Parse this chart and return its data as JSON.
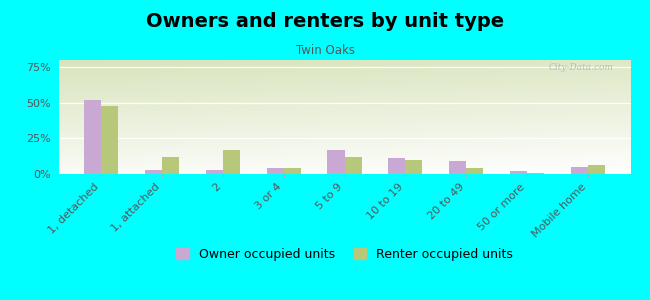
{
  "title": "Owners and renters by unit type",
  "subtitle": "Twin Oaks",
  "categories": [
    "1, detached",
    "1, attached",
    "2",
    "3 or 4",
    "5 to 9",
    "10 to 19",
    "20 to 49",
    "50 or more",
    "Mobile home"
  ],
  "owner_values": [
    52,
    3,
    3,
    4,
    17,
    11,
    9,
    2,
    5
  ],
  "renter_values": [
    48,
    12,
    17,
    4,
    12,
    10,
    4,
    1,
    6
  ],
  "owner_color": "#c9a8d4",
  "renter_color": "#b8c87a",
  "bg_color": "#00ffff",
  "plot_bg_green": "#c8d8a0",
  "ylim": [
    0,
    80
  ],
  "yticks": [
    0,
    25,
    50,
    75
  ],
  "ytick_labels": [
    "0%",
    "25%",
    "50%",
    "75%"
  ],
  "legend_owner": "Owner occupied units",
  "legend_renter": "Renter occupied units",
  "title_fontsize": 14,
  "subtitle_fontsize": 8.5,
  "tick_fontsize": 8,
  "legend_fontsize": 9
}
